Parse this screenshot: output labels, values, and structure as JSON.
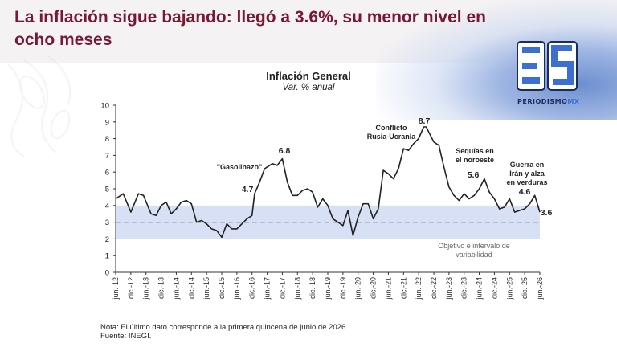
{
  "headline": "La inflación sigue bajando: llegó a 3.6%, su menor nivel en ocho meses",
  "logo": {
    "wordmark": "PERIODISMO",
    "suffix": "MX",
    "brand_color": "#3b6fd1"
  },
  "note": {
    "line1": "Nota: El último dato corresponde a la primera quincena de junio de 2026.",
    "line2": "Fuente: INEGI."
  },
  "colors": {
    "headline": "#7a1833",
    "line": "#222222",
    "band": "#c9d6f0",
    "target": "#555555"
  },
  "chart_data": {
    "type": "line",
    "title": "Inflación General",
    "subtitle": "Var. % anual",
    "ylim": [
      0,
      10
    ],
    "yticks": [
      0,
      1,
      2,
      3,
      4,
      5,
      6,
      7,
      8,
      9,
      10
    ],
    "xlim": [
      "2012-06",
      "2026-06"
    ],
    "xticks": [
      "jun.-12",
      "dic.-12",
      "jun.-13",
      "dic.-13",
      "jun.-14",
      "dic.-14",
      "jun.-15",
      "dic.-15",
      "jun.-16",
      "dic.-16",
      "jun.-17",
      "dic.-17",
      "jun.-18",
      "dic.-18",
      "jun.-19",
      "dic.-19",
      "jun.-20",
      "dic.-20",
      "jun.-21",
      "dic.-21",
      "jun.-22",
      "dic.-22",
      "jun.-23",
      "dic.-23",
      "jun.-24",
      "dic.-24",
      "jun.-25",
      "dic.-25",
      "jun.-26"
    ],
    "band": {
      "low": 2,
      "high": 4
    },
    "target": 3,
    "target_label": "Objetivo e intervalo de variabilidad",
    "series": [
      {
        "x": [
          "2012-06",
          "2012-09",
          "2012-12",
          "2013-03",
          "2013-05",
          "2013-08",
          "2013-10",
          "2013-12",
          "2014-02",
          "2014-04",
          "2014-06",
          "2014-08",
          "2014-10",
          "2014-12",
          "2015-02",
          "2015-04",
          "2015-06",
          "2015-08",
          "2015-10",
          "2015-12",
          "2016-02",
          "2016-04",
          "2016-06",
          "2016-08",
          "2016-10",
          "2016-12",
          "2017-01",
          "2017-03",
          "2017-05",
          "2017-08",
          "2017-10",
          "2017-12",
          "2018-02",
          "2018-04",
          "2018-06",
          "2018-08",
          "2018-10",
          "2018-12",
          "2019-02",
          "2019-04",
          "2019-06",
          "2019-08",
          "2019-10",
          "2019-12",
          "2020-02",
          "2020-04",
          "2020-06",
          "2020-08",
          "2020-10",
          "2020-12",
          "2021-02",
          "2021-04",
          "2021-06",
          "2021-08",
          "2021-10",
          "2021-12",
          "2022-02",
          "2022-04",
          "2022-06",
          "2022-08",
          "2022-09",
          "2022-10",
          "2022-12",
          "2023-02",
          "2023-04",
          "2023-06",
          "2023-08",
          "2023-10",
          "2023-12",
          "2024-02",
          "2024-04",
          "2024-06",
          "2024-08",
          "2024-10",
          "2024-12",
          "2025-02",
          "2025-04",
          "2025-06",
          "2025-08",
          "2025-10",
          "2025-12",
          "2026-02",
          "2026-04",
          "2026-06"
        ],
        "values": [
          4.4,
          4.7,
          3.6,
          4.7,
          4.6,
          3.5,
          3.4,
          4.0,
          4.2,
          3.5,
          3.8,
          4.2,
          4.3,
          4.1,
          3.0,
          3.1,
          2.9,
          2.6,
          2.5,
          2.1,
          2.9,
          2.6,
          2.6,
          2.9,
          3.2,
          3.4,
          4.7,
          5.4,
          6.2,
          6.5,
          6.4,
          6.8,
          5.4,
          4.6,
          4.6,
          4.9,
          5.0,
          4.8,
          3.9,
          4.4,
          4.0,
          3.2,
          3.0,
          2.8,
          3.7,
          2.2,
          3.3,
          4.1,
          4.1,
          3.2,
          3.8,
          6.1,
          5.9,
          5.6,
          6.2,
          7.4,
          7.3,
          7.7,
          8.0,
          8.7,
          8.7,
          8.4,
          7.8,
          7.6,
          6.3,
          5.1,
          4.6,
          4.3,
          4.7,
          4.4,
          4.6,
          5.0,
          5.6,
          4.8,
          4.4,
          3.8,
          3.9,
          4.4,
          3.6,
          3.7,
          3.8,
          4.1,
          4.6,
          3.6
        ]
      }
    ],
    "annotations": [
      {
        "text": "\"Gasolinazo\"",
        "x": "2016-12"
      },
      {
        "text": "4.7",
        "x": "2017-01",
        "y": 4.7
      },
      {
        "text": "6.8",
        "x": "2017-12",
        "y": 6.8
      },
      {
        "text": "Conflicto Rusia-Ucrania",
        "x": "2022-01"
      },
      {
        "text": "8.7",
        "x": "2022-09",
        "y": 8.7
      },
      {
        "text": "Sequías en el noroeste",
        "x": "2024-01"
      },
      {
        "text": "5.6",
        "x": "2024-08",
        "y": 5.6
      },
      {
        "text": "Guerra en Irán y alza en verduras",
        "x": "2026-01"
      },
      {
        "text": "4.6",
        "x": "2026-04",
        "y": 4.6
      },
      {
        "text": "3.6",
        "x": "2026-06",
        "y": 3.6
      }
    ]
  }
}
